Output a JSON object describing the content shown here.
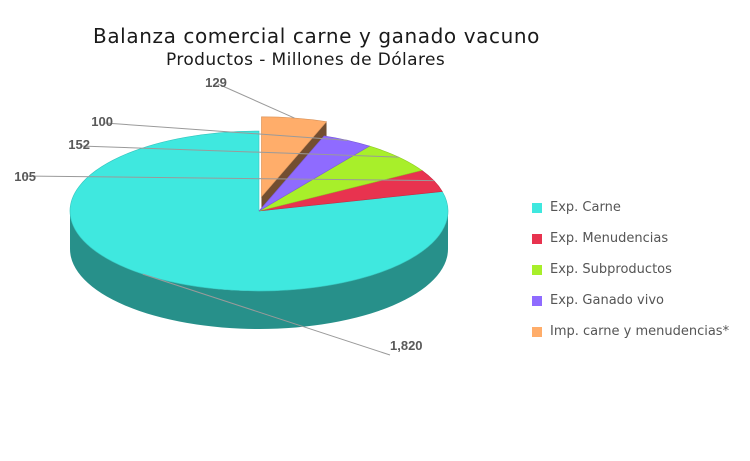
{
  "chart_data": {
    "type": "pie",
    "title": "Balanza comercial carne y ganado vacuno",
    "subtitle": "Productos  - Millones de Dólares",
    "value_labels": [
      "1,820",
      "105",
      "152",
      "100",
      "129"
    ],
    "legend_position": "right",
    "series": [
      {
        "name": "Exp. Carne",
        "value": 1820,
        "color": "#3fe8df"
      },
      {
        "name": "Exp. Menudencias",
        "value": 105,
        "color": "#e8334f"
      },
      {
        "name": "Exp. Subproductos",
        "value": 152,
        "color": "#a8ef2a"
      },
      {
        "name": "Exp. Ganado vivo",
        "value": 100,
        "color": "#8f6bff"
      },
      {
        "name": "Imp. carne y menudencias*",
        "value": 129,
        "color": "#ffad6a"
      }
    ]
  }
}
